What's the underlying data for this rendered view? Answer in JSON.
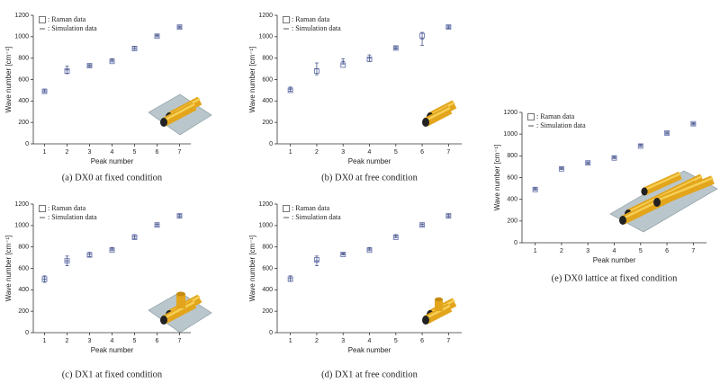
{
  "chart_data": [
    {
      "type": "scatter",
      "title": "(a) DX0 at fixed condition",
      "x_label": "Peak number",
      "y_label": "Wave number [cm⁻¹]",
      "x": [
        1,
        2,
        3,
        4,
        5,
        6,
        7
      ],
      "xlim": [
        0.5,
        7.5
      ],
      "xticks": [
        1,
        2,
        3,
        4,
        5,
        6,
        7
      ],
      "ylim": [
        0,
        1200
      ],
      "yticks": [
        0,
        200,
        400,
        600,
        800,
        1000,
        1200
      ],
      "legend": "upper left",
      "series": [
        {
          "name": ": Raman data",
          "color": "#6f7bb5",
          "marker": "square",
          "values": [
            490,
            680,
            730,
            770,
            890,
            1005,
            1090
          ]
        },
        {
          "name": ": Simulation data",
          "color": "#4d5a8c",
          "marker": "errorbar",
          "values": [
            495,
            690,
            730,
            780,
            895,
            1010,
            1090
          ],
          "errors": [
            15,
            35,
            10,
            15,
            15,
            12,
            10
          ]
        }
      ]
    },
    {
      "type": "scatter",
      "title": "(b) DX0 at free condition",
      "x_label": "Peak number",
      "y_label": "Wave number [cm⁻¹]",
      "x": [
        1,
        2,
        3,
        4,
        5,
        6,
        7
      ],
      "xlim": [
        0.5,
        7.5
      ],
      "xticks": [
        1,
        2,
        3,
        4,
        5,
        6,
        7
      ],
      "ylim": [
        0,
        1200
      ],
      "yticks": [
        0,
        200,
        400,
        600,
        800,
        1000,
        1200
      ],
      "legend": "upper left",
      "series": [
        {
          "name": ": Raman data",
          "color": "#6f7bb5",
          "marker": "square",
          "values": [
            500,
            680,
            735,
            790,
            895,
            1010,
            1090
          ]
        },
        {
          "name": ": Simulation data",
          "color": "#4d5a8c",
          "marker": "errorbar",
          "values": [
            510,
            700,
            770,
            800,
            895,
            980,
            1090
          ],
          "errors": [
            20,
            55,
            25,
            30,
            12,
            60,
            12
          ]
        }
      ]
    },
    {
      "type": "scatter",
      "title": "(c) DX1 at fixed condition",
      "x_label": "Peak number",
      "y_label": "Wave number [cm⁻¹]",
      "x": [
        1,
        2,
        3,
        4,
        5,
        6,
        7
      ],
      "xlim": [
        0.5,
        7.5
      ],
      "xticks": [
        1,
        2,
        3,
        4,
        5,
        6,
        7
      ],
      "ylim": [
        0,
        1200
      ],
      "yticks": [
        0,
        200,
        400,
        600,
        800,
        1000,
        1200
      ],
      "legend": "upper left",
      "series": [
        {
          "name": ": Raman data",
          "color": "#6f7bb5",
          "marker": "square",
          "values": [
            500,
            670,
            725,
            770,
            890,
            1005,
            1090
          ]
        },
        {
          "name": ": Simulation data",
          "color": "#4d5a8c",
          "marker": "errorbar",
          "values": [
            500,
            670,
            730,
            780,
            895,
            1010,
            1090
          ],
          "errors": [
            30,
            45,
            20,
            15,
            20,
            15,
            15
          ]
        }
      ]
    },
    {
      "type": "scatter",
      "title": "(d) DX1 at free condition",
      "x_label": "Peak number",
      "y_label": "Wave number [cm⁻¹]",
      "x": [
        1,
        2,
        3,
        4,
        5,
        6,
        7
      ],
      "xlim": [
        0.5,
        7.5
      ],
      "xticks": [
        1,
        2,
        3,
        4,
        5,
        6,
        7
      ],
      "ylim": [
        0,
        1200
      ],
      "yticks": [
        0,
        200,
        400,
        600,
        800,
        1000,
        1200
      ],
      "legend": "upper left",
      "series": [
        {
          "name": ": Raman data",
          "color": "#6f7bb5",
          "marker": "square",
          "values": [
            500,
            680,
            730,
            770,
            890,
            1005,
            1090
          ]
        },
        {
          "name": ": Simulation data",
          "color": "#4d5a8c",
          "marker": "errorbar",
          "values": [
            505,
            670,
            735,
            780,
            900,
            1010,
            1090
          ],
          "errors": [
            25,
            45,
            10,
            15,
            15,
            15,
            15
          ]
        }
      ]
    },
    {
      "type": "scatter",
      "title": "(e) DX0 lattice at fixed condition",
      "x_label": "Peak number",
      "y_label": "Wave number [cm⁻¹]",
      "x": [
        1,
        2,
        3,
        4,
        5,
        6,
        7
      ],
      "xlim": [
        0.5,
        7.5
      ],
      "xticks": [
        1,
        2,
        3,
        4,
        5,
        6,
        7
      ],
      "ylim": [
        0,
        1200
      ],
      "yticks": [
        0,
        200,
        400,
        600,
        800,
        1000,
        1200
      ],
      "legend": "upper left",
      "series": [
        {
          "name": ": Raman data",
          "color": "#6f7bb5",
          "marker": "square",
          "values": [
            490,
            680,
            735,
            780,
            890,
            1010,
            1095
          ]
        },
        {
          "name": ": Simulation data",
          "color": "#4d5a8c",
          "marker": "errorbar",
          "values": [
            495,
            685,
            735,
            785,
            895,
            1010,
            1095
          ],
          "errors": [
            10,
            10,
            10,
            10,
            10,
            10,
            10
          ]
        }
      ]
    }
  ]
}
